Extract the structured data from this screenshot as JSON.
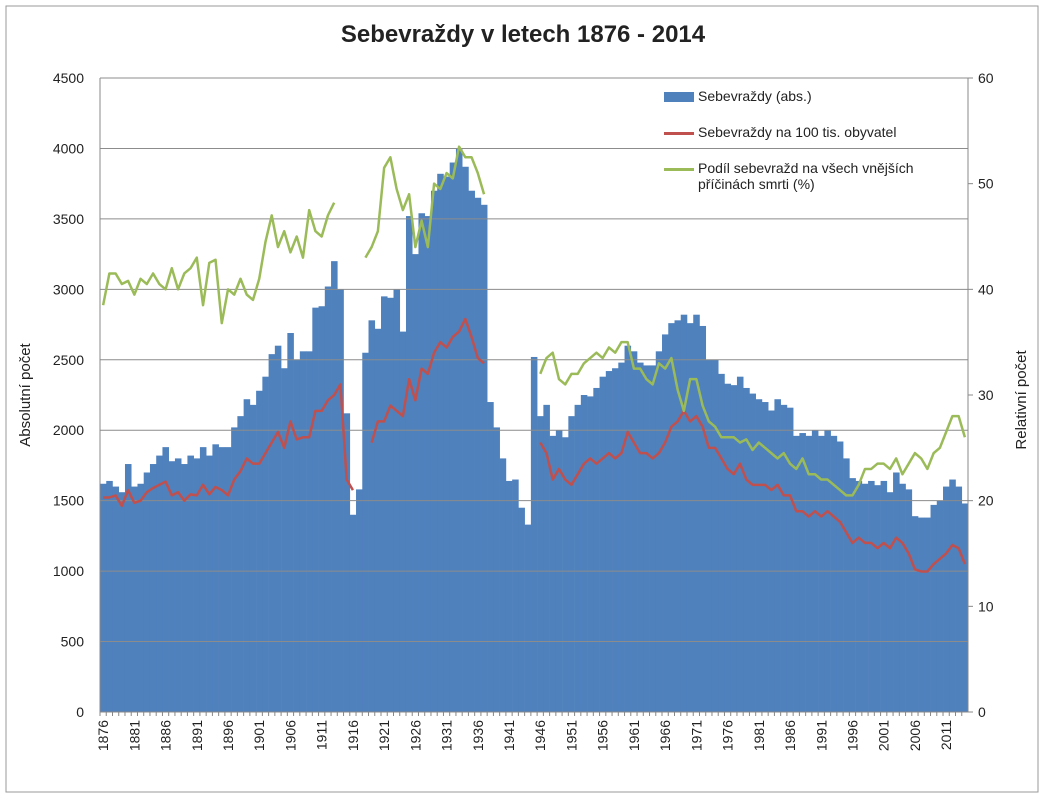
{
  "chart_data": {
    "type": "bar-line",
    "title": "Sebevraždy v letech 1876 - 2014",
    "y_label": "Absolutní počet",
    "y2_label": "Relativní počet",
    "categories": [
      "1876",
      null,
      null,
      null,
      null,
      "1881",
      null,
      null,
      null,
      null,
      "1886",
      null,
      null,
      null,
      null,
      "1891",
      null,
      null,
      null,
      null,
      "1896",
      null,
      null,
      null,
      null,
      "1901",
      null,
      null,
      null,
      null,
      "1906",
      null,
      null,
      null,
      null,
      "1911",
      null,
      null,
      null,
      null,
      "1916",
      null,
      null,
      null,
      null,
      "1921",
      null,
      null,
      null,
      null,
      "1926",
      null,
      null,
      null,
      null,
      "1931",
      null,
      null,
      null,
      null,
      "1936",
      null,
      null,
      null,
      null,
      "1941",
      null,
      null,
      null,
      null,
      "1946",
      null,
      null,
      null,
      null,
      "1951",
      null,
      null,
      null,
      null,
      "1956",
      null,
      null,
      null,
      null,
      "1961",
      null,
      null,
      null,
      null,
      "1966",
      null,
      null,
      null,
      null,
      "1971",
      null,
      null,
      null,
      null,
      "1976",
      null,
      null,
      null,
      null,
      "1981",
      null,
      null,
      null,
      null,
      "1986",
      null,
      null,
      null,
      null,
      "1991",
      null,
      null,
      null,
      null,
      "1996",
      null,
      null,
      null,
      null,
      "2001",
      null,
      null,
      null,
      null,
      "2006",
      null,
      null,
      null,
      null,
      "2011",
      null,
      null,
      null
    ],
    "series": [
      {
        "name": "Sebevraždy (abs.)",
        "color": "#4f81bd",
        "kind": "bar",
        "values": [
          1620,
          1640,
          1600,
          1560,
          1760,
          1600,
          1620,
          1700,
          1760,
          1820,
          1880,
          1780,
          1800,
          1760,
          1820,
          1800,
          1880,
          1820,
          1900,
          1880,
          1880,
          2020,
          2100,
          2220,
          2180,
          2280,
          2380,
          2540,
          2600,
          2440,
          2690,
          2500,
          2560,
          2560,
          2870,
          2880,
          3020,
          3200,
          3000,
          2120,
          1400,
          1580,
          2550,
          2780,
          2720,
          2950,
          2940,
          3000,
          2700,
          3520,
          3250,
          3540,
          3520,
          3700,
          3820,
          3800,
          3900,
          4000,
          3870,
          3700,
          3650,
          3600,
          2200,
          2020,
          1800,
          1640,
          1650,
          1450,
          1330,
          2520,
          2100,
          2180,
          1960,
          2000,
          1950,
          2100,
          2180,
          2250,
          2240,
          2300,
          2380,
          2420,
          2440,
          2480,
          2600,
          2560,
          2480,
          2460,
          2460,
          2560,
          2680,
          2760,
          2780,
          2820,
          2760,
          2820,
          2740,
          2500,
          2500,
          2400,
          2330,
          2320,
          2380,
          2300,
          2260,
          2220,
          2200,
          2140,
          2220,
          2180,
          2160,
          1960,
          1980,
          1960,
          2000,
          1960,
          2000,
          1960,
          1920,
          1800,
          1660,
          1640,
          1620,
          1640,
          1610,
          1640,
          1560,
          1700,
          1620,
          1580,
          1390,
          1380,
          1380,
          1470,
          1500,
          1600,
          1650,
          1600,
          1480
        ]
      },
      {
        "name": "Sebevraždy na 100 tis. obyvatel",
        "color": "#c0504d",
        "kind": "line",
        "axis": "y2",
        "values": [
          20.3,
          20.3,
          20.5,
          19.5,
          21.0,
          19.8,
          20.0,
          20.8,
          21.2,
          21.5,
          21.8,
          20.5,
          20.8,
          20.0,
          20.6,
          20.5,
          21.5,
          20.6,
          21.3,
          21.0,
          20.5,
          22.0,
          22.8,
          24.0,
          23.5,
          23.5,
          24.5,
          25.5,
          26.5,
          25.0,
          27.5,
          25.8,
          26.0,
          26.0,
          28.5,
          28.5,
          29.5,
          30.0,
          31.0,
          22,
          21,
          null,
          null,
          25.5,
          27.5,
          27.5,
          29,
          28.5,
          28,
          31.5,
          29.5,
          32.5,
          32,
          34,
          35,
          34.5,
          35.5,
          36,
          37.2,
          35.5,
          33.5,
          33,
          null,
          null,
          null,
          null,
          null,
          null,
          null,
          null,
          25.5,
          24.5,
          22,
          23,
          22,
          21.5,
          22.5,
          23.5,
          24,
          23.5,
          24,
          24.5,
          24,
          24.5,
          26.5,
          25.5,
          24.5,
          24.5,
          24,
          24.5,
          25.5,
          27,
          27.5,
          28.5,
          27.5,
          28,
          27,
          25,
          25,
          24,
          23,
          22.5,
          23.5,
          22,
          21.5,
          21.5,
          21.5,
          21,
          21.5,
          20.5,
          20.5,
          19,
          19,
          18.5,
          19,
          18.5,
          19,
          18.5,
          18,
          17,
          16,
          16.5,
          16,
          16,
          15.5,
          16,
          15.5,
          16.5,
          16,
          15,
          13.5,
          13.3,
          13.3,
          14,
          14.5,
          15,
          15.8,
          15.5,
          14
        ]
      },
      {
        "name": "Podíl sebevražd na všech vnějších příčinách smrti (%)",
        "color": "#9bbb59",
        "kind": "line",
        "axis": "y2",
        "values": [
          38.5,
          41.5,
          41.5,
          40.5,
          40.8,
          39.5,
          41,
          40.5,
          41.5,
          40.5,
          40,
          42,
          40,
          41.5,
          42,
          43,
          38.5,
          42.5,
          42.8,
          36.8,
          40,
          39.5,
          41,
          39.5,
          39,
          41,
          44.5,
          47,
          44,
          45.5,
          43.5,
          45,
          43,
          47.5,
          45.5,
          45,
          47,
          48.2,
          null,
          null,
          null,
          null,
          43,
          44,
          45.5,
          51.5,
          52.5,
          49.5,
          47.5,
          49,
          44,
          46.5,
          44,
          50,
          49.5,
          51,
          50.5,
          53.5,
          52.5,
          52.5,
          51,
          49,
          null,
          null,
          null,
          null,
          null,
          null,
          null,
          null,
          32,
          33.5,
          34,
          31.5,
          31,
          32,
          32,
          33,
          33.5,
          34,
          33.5,
          34.5,
          34,
          35,
          35,
          32.5,
          32.5,
          31.5,
          31,
          33,
          32.5,
          33.5,
          30.5,
          28.5,
          31.5,
          31.5,
          29,
          27.5,
          27,
          26,
          26,
          26,
          25.5,
          25.8,
          24.8,
          25.5,
          25,
          24.5,
          24,
          24.5,
          23.5,
          23,
          24,
          22.5,
          22.5,
          22,
          22,
          21.5,
          21,
          20.5,
          20.5,
          21.5,
          23,
          23,
          23.5,
          23.5,
          23,
          24,
          22.5,
          23.5,
          24.5,
          24,
          23,
          24.5,
          25,
          26.5,
          28,
          28,
          26
        ]
      }
    ],
    "ylim": [
      0,
      4500
    ],
    "yticks": [
      0,
      500,
      1000,
      1500,
      2000,
      2500,
      3000,
      3500,
      4000,
      4500
    ],
    "y2lim": [
      0,
      60
    ],
    "y2ticks": [
      0,
      10,
      20,
      30,
      40,
      50,
      60
    ],
    "grid": true,
    "legend": "top-right"
  }
}
